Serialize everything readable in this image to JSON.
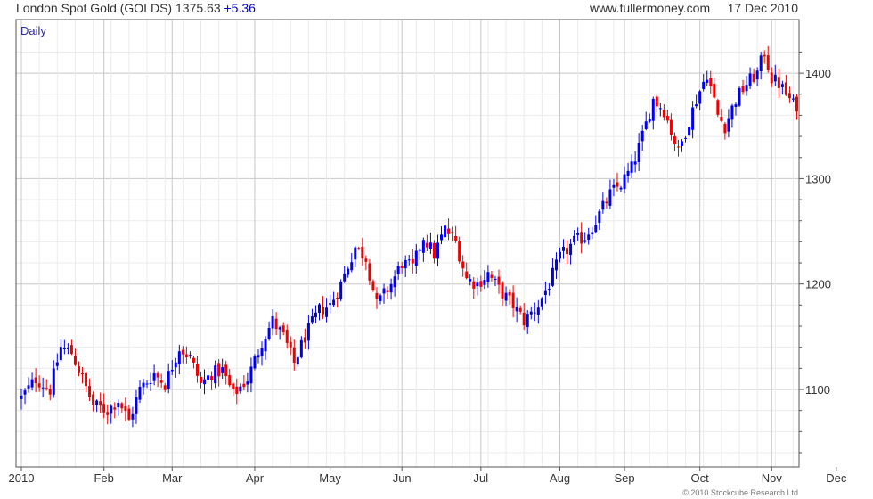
{
  "header": {
    "instrument": "London Spot Gold (GOLDS)",
    "last_price": "1375.63",
    "change": "+5.36",
    "source": "www.fullermoney.com",
    "date": "17 Dec 2010"
  },
  "period_label": "Daily",
  "copyright": "© 2010 Stockcube Research Ltd",
  "colors": {
    "up": "#0000ee",
    "down": "#ee0000",
    "grid_major": "#c8c8c8",
    "grid_minor": "#ebebeb",
    "axis": "#555555"
  },
  "chart_data": {
    "type": "candlestick",
    "title": "",
    "xlabel": "",
    "ylabel": "",
    "ylim": [
      1030,
      1435
    ],
    "y_ticks": [
      1100,
      1200,
      1300,
      1400
    ],
    "y_tick_labels": [
      "1100",
      "1200",
      "1300",
      "1400"
    ],
    "y_axis_side": "right",
    "x_ticks": [
      "2010",
      "Feb",
      "Mar",
      "Apr",
      "May",
      "Jun",
      "Jul",
      "Aug",
      "Sep",
      "Oct",
      "Nov",
      "Dec"
    ],
    "grid": true,
    "close_path": [
      [
        0,
        1092
      ],
      [
        4,
        1110
      ],
      [
        8,
        1100
      ],
      [
        11,
        1140
      ],
      [
        14,
        1135
      ],
      [
        17,
        1110
      ],
      [
        20,
        1085
      ],
      [
        24,
        1080
      ],
      [
        27,
        1090
      ],
      [
        30,
        1070
      ],
      [
        33,
        1100
      ],
      [
        37,
        1115
      ],
      [
        40,
        1105
      ],
      [
        44,
        1140
      ],
      [
        47,
        1130
      ],
      [
        50,
        1105
      ],
      [
        53,
        1115
      ],
      [
        56,
        1118
      ],
      [
        59,
        1095
      ],
      [
        63,
        1110
      ],
      [
        67,
        1145
      ],
      [
        70,
        1165
      ],
      [
        73,
        1150
      ],
      [
        76,
        1125
      ],
      [
        79,
        1150
      ],
      [
        83,
        1175
      ],
      [
        86,
        1180
      ],
      [
        89,
        1200
      ],
      [
        93,
        1235
      ],
      [
        96,
        1225
      ],
      [
        99,
        1180
      ],
      [
        103,
        1200
      ],
      [
        106,
        1220
      ],
      [
        109,
        1215
      ],
      [
        112,
        1245
      ],
      [
        115,
        1228
      ],
      [
        118,
        1252
      ],
      [
        121,
        1240
      ],
      [
        124,
        1205
      ],
      [
        127,
        1200
      ],
      [
        130,
        1210
      ],
      [
        133,
        1195
      ],
      [
        137,
        1180
      ],
      [
        140,
        1165
      ],
      [
        144,
        1180
      ],
      [
        147,
        1200
      ],
      [
        150,
        1225
      ],
      [
        154,
        1240
      ],
      [
        157,
        1245
      ],
      [
        160,
        1260
      ],
      [
        164,
        1285
      ],
      [
        167,
        1295
      ],
      [
        170,
        1310
      ],
      [
        173,
        1340
      ],
      [
        176,
        1375
      ],
      [
        179,
        1365
      ],
      [
        181,
        1345
      ],
      [
        183,
        1325
      ],
      [
        186,
        1355
      ],
      [
        188,
        1375
      ],
      [
        191,
        1400
      ],
      [
        194,
        1360
      ],
      [
        196,
        1350
      ],
      [
        199,
        1375
      ],
      [
        202,
        1390
      ],
      [
        205,
        1400
      ],
      [
        207,
        1420
      ],
      [
        209,
        1395
      ],
      [
        211,
        1390
      ],
      [
        213,
        1380
      ],
      [
        215,
        1370
      ]
    ]
  }
}
